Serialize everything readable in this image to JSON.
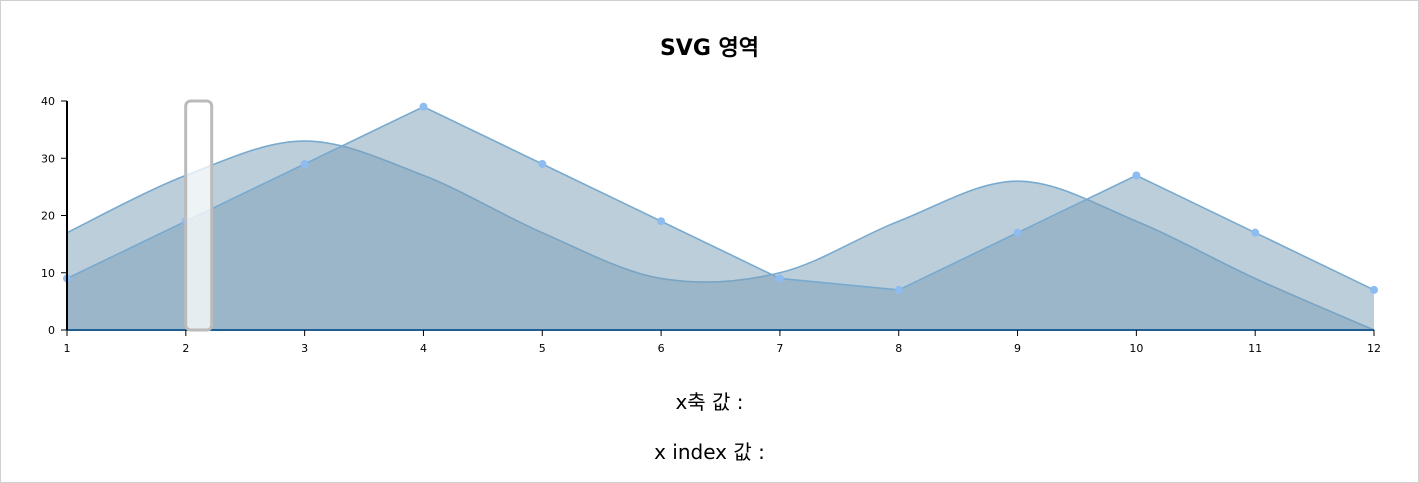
{
  "title": "SVG 영역",
  "chart_data": {
    "type": "area",
    "categories": [
      "1",
      "2",
      "3",
      "4",
      "5",
      "6",
      "7",
      "8",
      "9",
      "10",
      "11",
      "12"
    ],
    "x": [
      1,
      2,
      3,
      4,
      5,
      6,
      7,
      8,
      9,
      10,
      11,
      12
    ],
    "series": [
      {
        "values": [
          17,
          27,
          33,
          27,
          17,
          9,
          10,
          19,
          26,
          19,
          9,
          0
        ],
        "curve": "smooth",
        "markers": false
      },
      {
        "values": [
          9,
          19,
          29,
          39,
          29,
          19,
          9,
          7,
          17,
          27,
          17,
          7
        ],
        "curve": "linear",
        "markers": true
      }
    ],
    "ylim": [
      0,
      40
    ],
    "yticks": [
      0,
      10,
      20,
      30,
      40
    ],
    "grid": false,
    "colors": {
      "area": "#7a9eb5",
      "line": "#78aad0",
      "marker": "#8ebcf0",
      "axis": "#1f5f93",
      "cursor": "#bbbbbb"
    },
    "cursor_at": 2.1
  },
  "info": {
    "x_value_label": "x축 값 :",
    "x_index_label": "x index 값 :"
  }
}
